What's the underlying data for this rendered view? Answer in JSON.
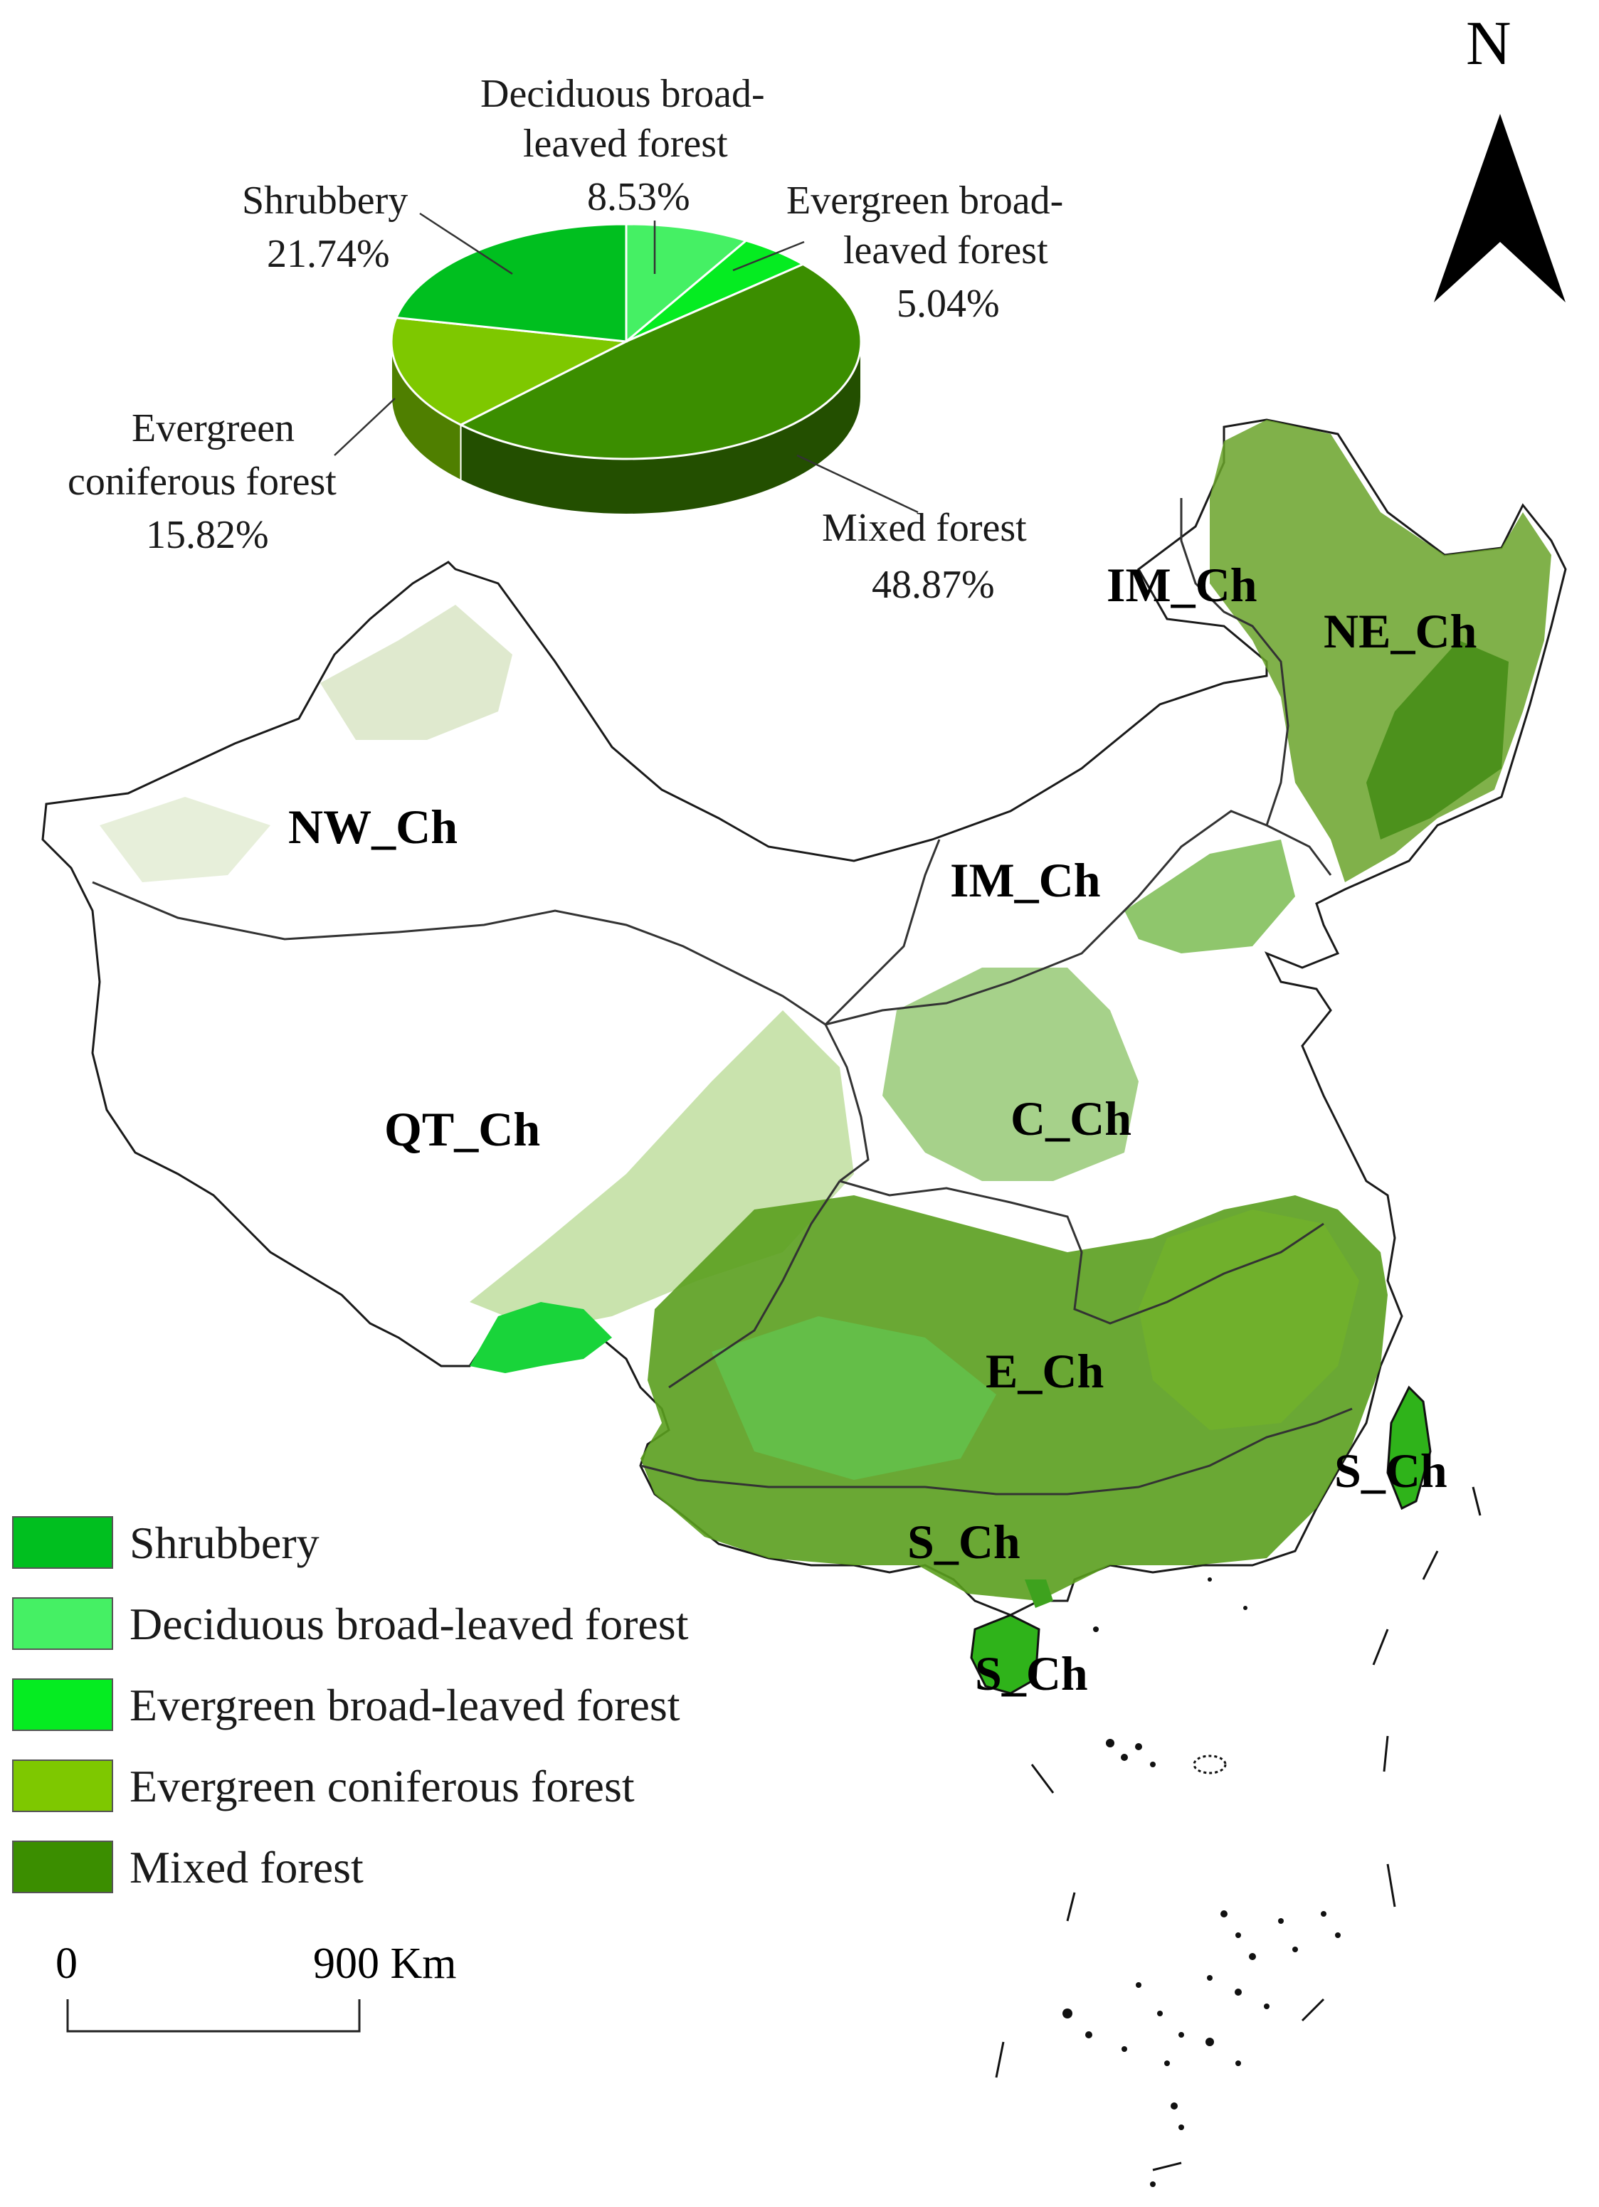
{
  "north_label": "N",
  "legend": {
    "items": [
      {
        "label": "Shrubbery",
        "color": "#00bf1f"
      },
      {
        "label": "Deciduous broad-leaved forest",
        "color": "#45f064"
      },
      {
        "label": "Evergreen broad-leaved forest",
        "color": "#05ec21"
      },
      {
        "label": "Evergreen coniferous forest",
        "color": "#7ec800"
      },
      {
        "label": "Mixed forest",
        "color": "#3b8e00"
      }
    ]
  },
  "scale_bar": {
    "start": "0",
    "end": "900 Km"
  },
  "regions": {
    "nw": "NW_Ch",
    "qt": "QT_Ch",
    "im_north": "IM_Ch",
    "im": "IM_Ch",
    "ne": "NE_Ch",
    "c": "C_Ch",
    "e": "E_Ch",
    "s_taiwan": "S_Ch",
    "s_south": "S_Ch",
    "s_hainan": "S_Ch"
  },
  "pie_labels": {
    "shrub_name": "Shrubbery",
    "shrub_pct": "21.74%",
    "decid_name_1": "Deciduous broad-",
    "decid_name_2": "leaved forest",
    "decid_pct": "8.53%",
    "everbroad_name_1": "Evergreen broad-",
    "everbroad_name_2": "leaved forest",
    "everbroad_pct": "5.04%",
    "conif_name_1": "Evergreen",
    "conif_name_2": "coniferous forest",
    "conif_pct": "15.82%",
    "mixed_name": "Mixed forest",
    "mixed_pct": "48.87%"
  },
  "chart_data": {
    "type": "pie",
    "categories": [
      "Deciduous broad-leaved forest",
      "Evergreen broad-leaved forest",
      "Mixed forest",
      "Evergreen coniferous forest",
      "Shrubbery"
    ],
    "values": [
      8.53,
      5.04,
      48.87,
      15.82,
      21.74
    ],
    "colors": [
      "#45f064",
      "#05ec21",
      "#3b8e00",
      "#7ec800",
      "#00bf1f"
    ],
    "dark_colors": [
      "#2aa63d",
      "#049a16",
      "#234f00",
      "#4f7f00",
      "#00781a"
    ],
    "unit": "%"
  }
}
